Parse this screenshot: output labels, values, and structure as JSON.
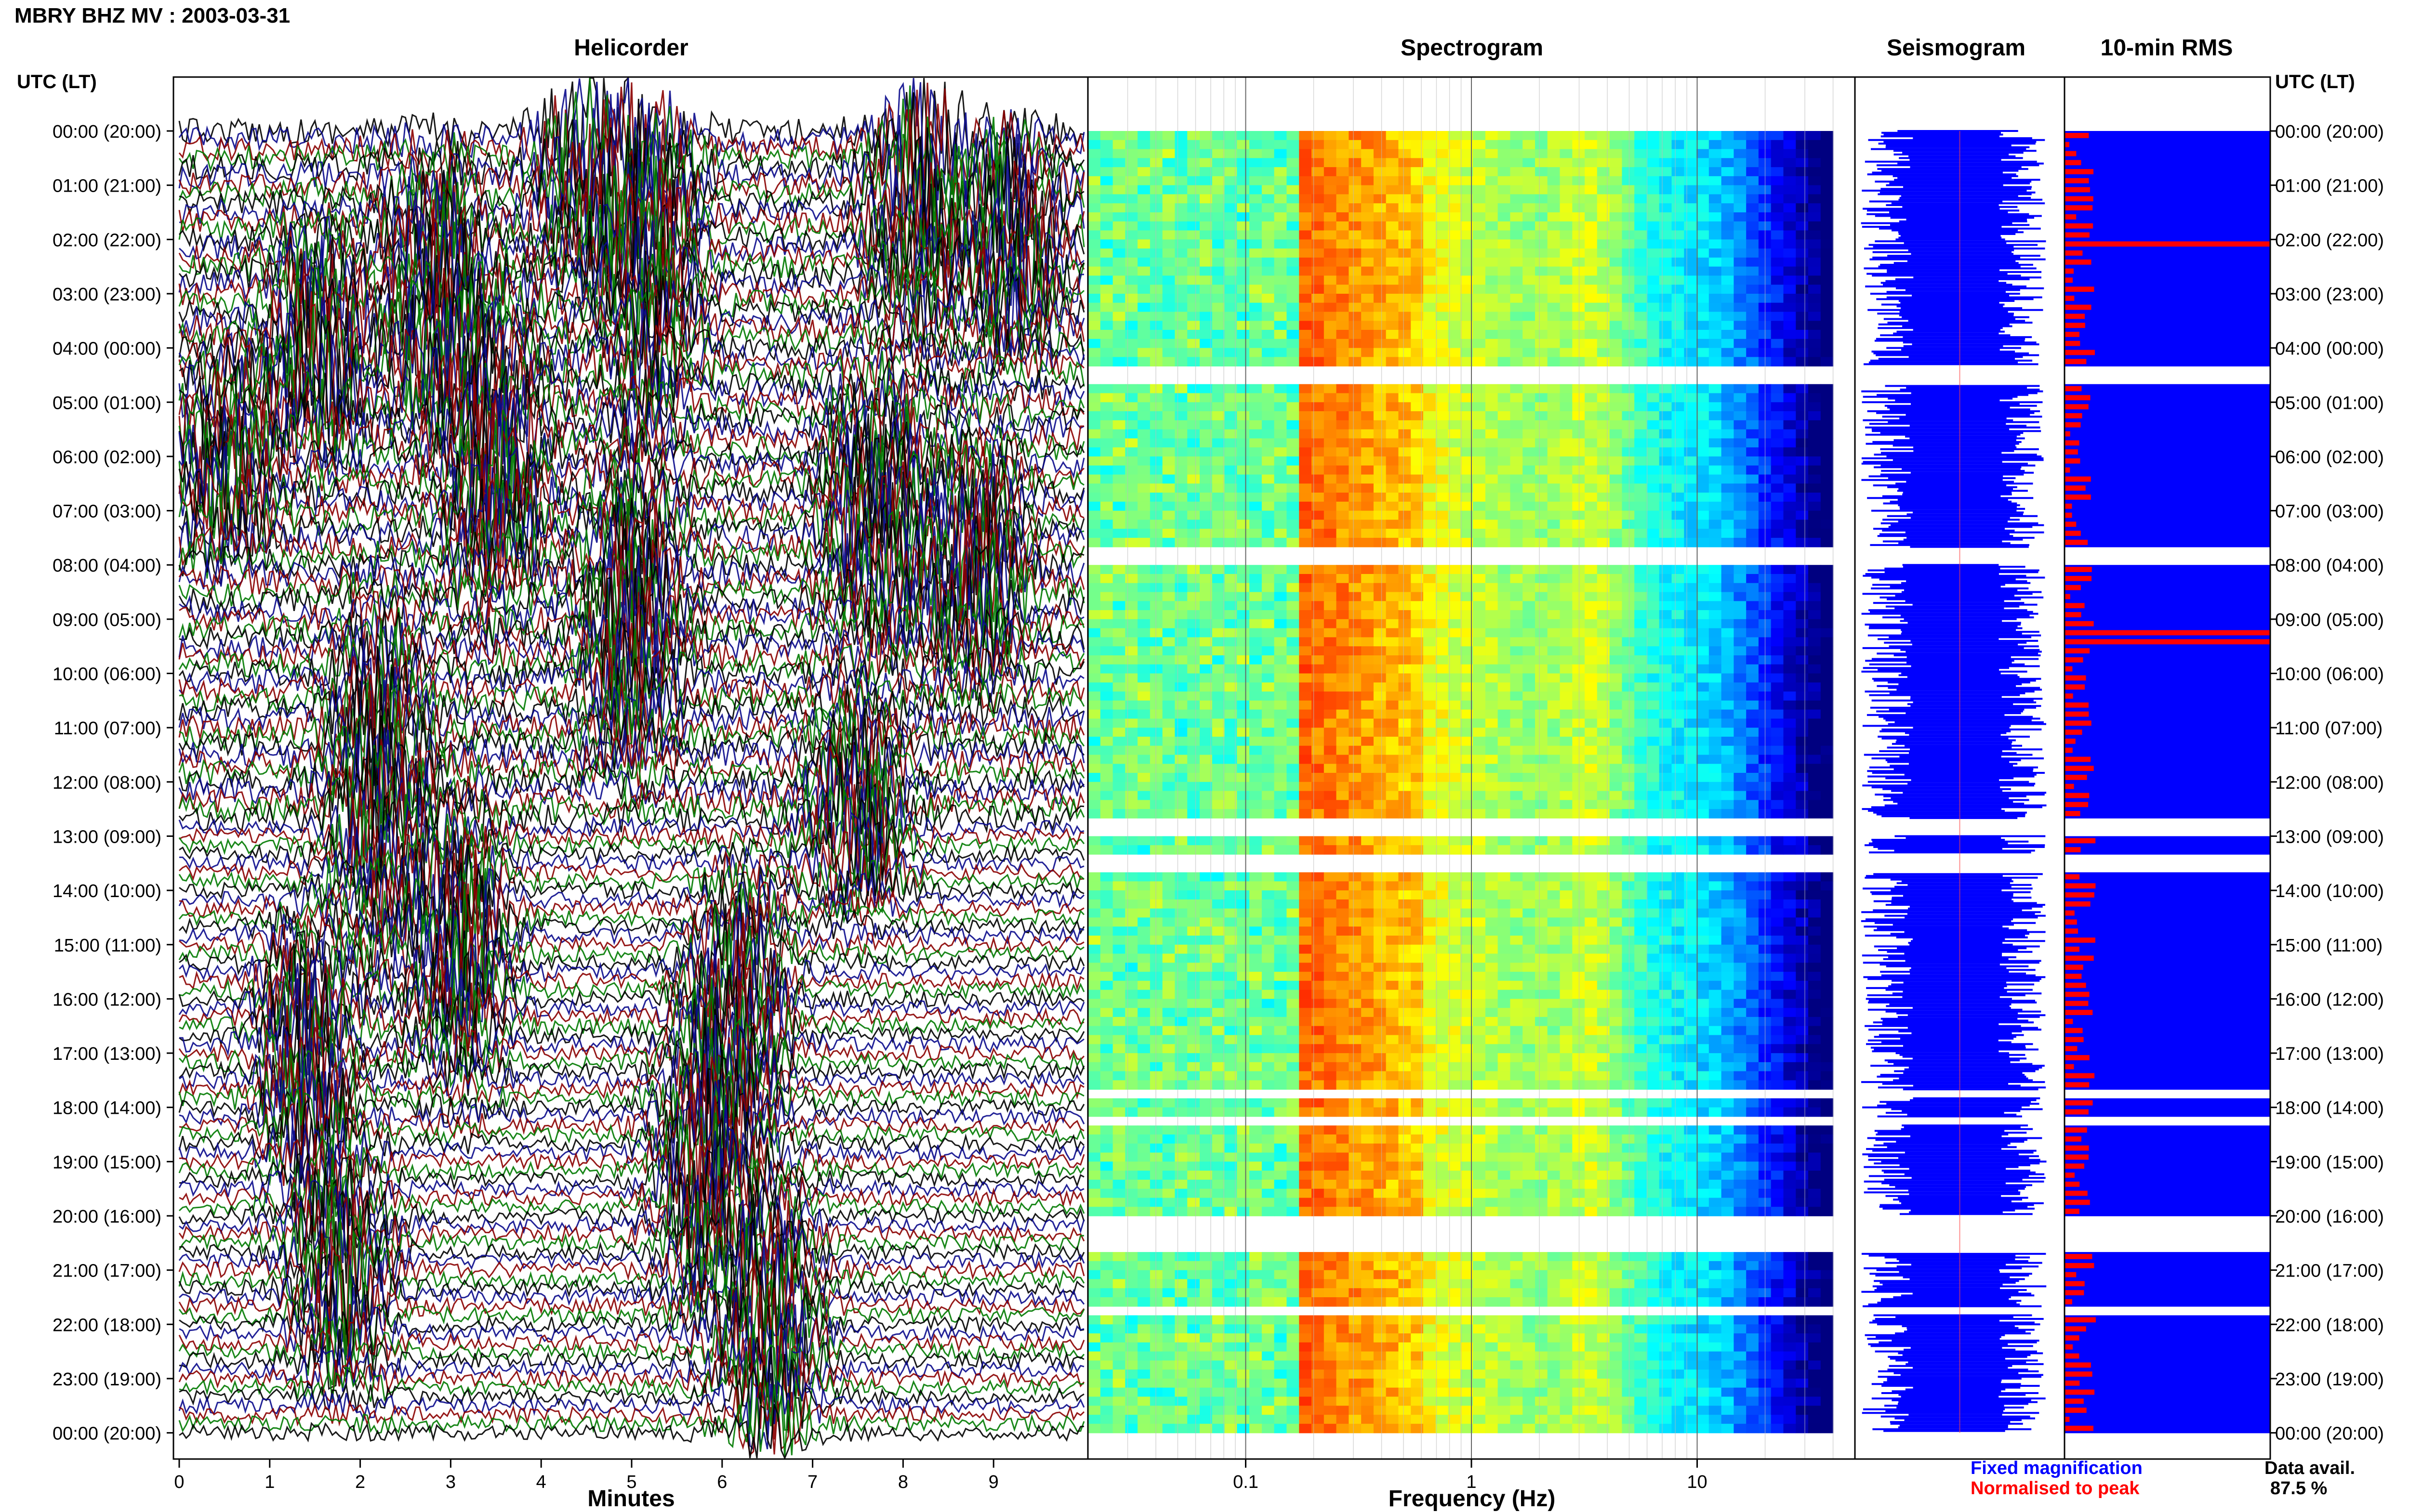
{
  "figure": {
    "title": "MBRY BHZ MV : 2003-03-31",
    "left_axis_label": "UTC (LT)",
    "right_axis_label": "UTC (LT)",
    "legend": {
      "fixed": "Fixed magnification",
      "normalised": "Normalised to peak",
      "fixed_color": "#0000ff",
      "normalised_color": "#ff0000"
    },
    "availability": {
      "label": "Data avail.",
      "value": "87.5 %"
    }
  },
  "chart_data": [
    {
      "type": "line",
      "title": "Helicorder",
      "xlabel": "Minutes",
      "x_ticks": [
        "0",
        "1",
        "2",
        "3",
        "4",
        "5",
        "6",
        "7",
        "8",
        "9"
      ],
      "xlim": [
        0,
        10
      ],
      "ylim_hours": [
        0,
        24
      ],
      "row_labels": [
        "00:00 (20:00)",
        "01:00 (21:00)",
        "02:00 (22:00)",
        "03:00 (23:00)",
        "04:00 (00:00)",
        "05:00 (01:00)",
        "06:00 (02:00)",
        "07:00 (03:00)",
        "08:00 (04:00)",
        "09:00 (05:00)",
        "10:00 (06:00)",
        "11:00 (07:00)",
        "12:00 (08:00)",
        "13:00 (09:00)",
        "14:00 (10:00)",
        "15:00 (11:00)",
        "16:00 (12:00)",
        "17:00 (13:00)",
        "18:00 (14:00)",
        "19:00 (15:00)",
        "20:00 (16:00)",
        "21:00 (17:00)",
        "22:00 (18:00)",
        "23:00 (19:00)",
        "00:00 (20:00)"
      ],
      "trace_colors": [
        "#000000",
        "#0a0a8c",
        "#8b0000",
        "#007a00"
      ],
      "lines_per_hour": 6,
      "minutes_per_line": 10
    },
    {
      "type": "heatmap",
      "title": "Spectrogram",
      "xlabel": "Frequency (Hz)",
      "x_scale": "log",
      "xlim": [
        0.02,
        50
      ],
      "x_ticks": [
        "0.1",
        "1",
        "10"
      ],
      "ylim_hours": [
        0,
        24
      ],
      "colormap": "jet",
      "peak_band_hz": [
        0.17,
        0.6
      ],
      "secondary_peak_hz": 3.5
    },
    {
      "type": "line",
      "title": "Seismogram",
      "ylim_hours": [
        0,
        24
      ],
      "color": "#0000ff"
    },
    {
      "type": "bar",
      "title": "10-min RMS",
      "ylim_hours": [
        0,
        24
      ],
      "fixed_color": "#0000ff",
      "normalised_color": "#ff0000",
      "normalised_peak_hours": [
        1.95,
        9.25
      ]
    }
  ],
  "data_gaps_hours": [
    [
      4.33,
      4.67
    ],
    [
      7.67,
      8.0
    ],
    [
      12.67,
      13.0
    ],
    [
      13.33,
      13.67
    ],
    [
      17.67,
      17.83
    ],
    [
      18.17,
      18.33
    ],
    [
      20.0,
      20.67
    ],
    [
      21.67,
      21.83
    ]
  ]
}
